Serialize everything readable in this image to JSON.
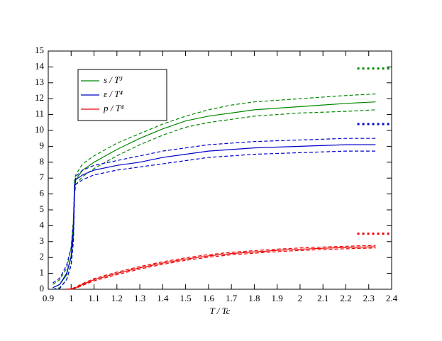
{
  "chart_data": {
    "type": "line",
    "xlabel": "T / Tc",
    "x": [
      0.92,
      0.95,
      0.98,
      1.0,
      1.01,
      1.015,
      1.02,
      1.05,
      1.1,
      1.2,
      1.3,
      1.4,
      1.5,
      1.6,
      1.7,
      1.8,
      1.9,
      2.0,
      2.1,
      2.2,
      2.33
    ],
    "xlim": [
      0.9,
      2.4
    ],
    "xticks": [
      0.9,
      1,
      1.1,
      1.2,
      1.3,
      1.4,
      1.5,
      1.6,
      1.7,
      1.8,
      1.9,
      2,
      2.1,
      2.2,
      2.3,
      2.4
    ],
    "ylim": [
      0,
      15
    ],
    "yticks": [
      0,
      1,
      2,
      3,
      4,
      5,
      6,
      7,
      8,
      9,
      10,
      11,
      12,
      13,
      14,
      15
    ],
    "limit_x": [
      2.25,
      2.4
    ],
    "series": [
      {
        "name": "s / T³",
        "color": "#008800",
        "values": [
          0.1,
          0.3,
          0.9,
          2.1,
          4.0,
          6.5,
          6.9,
          7.5,
          8.0,
          8.8,
          9.5,
          10.1,
          10.6,
          10.9,
          11.1,
          11.3,
          11.4,
          11.5,
          11.6,
          11.7,
          11.8
        ],
        "upper": [
          0.3,
          0.6,
          1.3,
          2.6,
          4.4,
          6.9,
          7.2,
          7.9,
          8.4,
          9.2,
          9.8,
          10.4,
          10.9,
          11.3,
          11.6,
          11.8,
          11.9,
          12.0,
          12.1,
          12.2,
          12.3
        ],
        "lower": [
          0.0,
          0.1,
          0.6,
          1.6,
          3.4,
          6.2,
          6.6,
          7.1,
          7.6,
          8.4,
          9.1,
          9.7,
          10.2,
          10.5,
          10.7,
          10.9,
          11.0,
          11.1,
          11.15,
          11.2,
          11.3
        ],
        "limit": 13.9
      },
      {
        "name": "ε / T⁴",
        "color": "#0000cc",
        "values": [
          0.1,
          0.3,
          1.0,
          2.0,
          3.5,
          6.3,
          6.9,
          7.2,
          7.5,
          7.8,
          8.0,
          8.3,
          8.5,
          8.7,
          8.8,
          8.9,
          8.95,
          9.0,
          9.05,
          9.1,
          9.1
        ],
        "upper": [
          0.4,
          0.7,
          1.5,
          2.6,
          4.2,
          6.6,
          7.1,
          7.5,
          7.8,
          8.1,
          8.4,
          8.7,
          8.9,
          9.1,
          9.2,
          9.3,
          9.35,
          9.4,
          9.45,
          9.5,
          9.5
        ],
        "lower": [
          0.0,
          0.05,
          0.6,
          1.5,
          3.0,
          6.0,
          6.6,
          6.9,
          7.2,
          7.5,
          7.7,
          7.9,
          8.1,
          8.3,
          8.4,
          8.5,
          8.55,
          8.6,
          8.65,
          8.7,
          8.7
        ],
        "limit": 10.4
      },
      {
        "name": "p / T⁴",
        "color": "#ee0000",
        "values": [
          null,
          null,
          0.0,
          0.02,
          0.05,
          0.07,
          0.1,
          0.3,
          0.6,
          1.0,
          1.35,
          1.65,
          1.9,
          2.1,
          2.25,
          2.35,
          2.45,
          2.52,
          2.58,
          2.63,
          2.68
        ],
        "upper": [
          null,
          null,
          0.0,
          0.04,
          0.08,
          0.1,
          0.14,
          0.36,
          0.67,
          1.08,
          1.43,
          1.73,
          1.98,
          2.18,
          2.33,
          2.43,
          2.53,
          2.6,
          2.66,
          2.71,
          2.76
        ],
        "lower": [
          null,
          null,
          0.0,
          0.0,
          0.02,
          0.04,
          0.06,
          0.24,
          0.53,
          0.92,
          1.27,
          1.57,
          1.82,
          2.02,
          2.17,
          2.27,
          2.37,
          2.44,
          2.5,
          2.55,
          2.6
        ],
        "limit": 3.5
      }
    ]
  }
}
